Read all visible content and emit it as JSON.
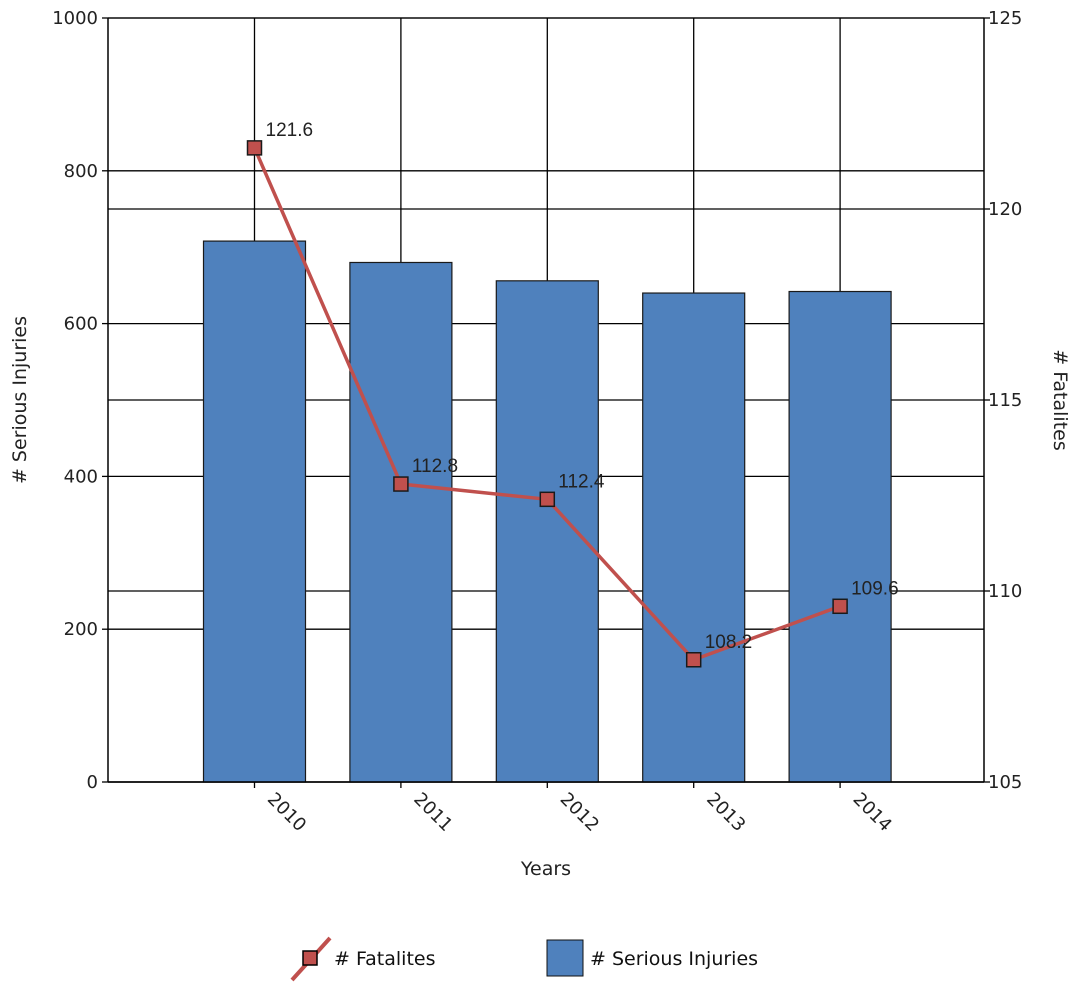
{
  "chart_data": {
    "type": "bar",
    "categories": [
      "2010",
      "2011",
      "2012",
      "2013",
      "2014"
    ],
    "xlabel": "Years",
    "ylabel": "# Serious Injuries",
    "y2label": "# Fatalites",
    "ylim": [
      0,
      1000
    ],
    "y2lim": [
      105,
      125
    ],
    "yticks": [
      "0",
      "200",
      "400",
      "600",
      "800",
      "1000"
    ],
    "y2ticks": [
      "105",
      "110",
      "115",
      "120",
      "125"
    ],
    "grid": true,
    "legend_position": "bottom",
    "series": [
      {
        "name": "# Serious Injuries",
        "type": "bar",
        "axis": "left",
        "color": "#4f81bd",
        "values": [
          708,
          680,
          656,
          640,
          642
        ]
      },
      {
        "name": "# Fatalites",
        "type": "line",
        "axis": "right",
        "color": "#c0504d",
        "values": [
          121.6,
          112.8,
          112.4,
          108.2,
          109.6
        ],
        "labels": [
          "121.6",
          "112.8",
          "112.4",
          "108.2",
          "109.6"
        ]
      }
    ]
  }
}
